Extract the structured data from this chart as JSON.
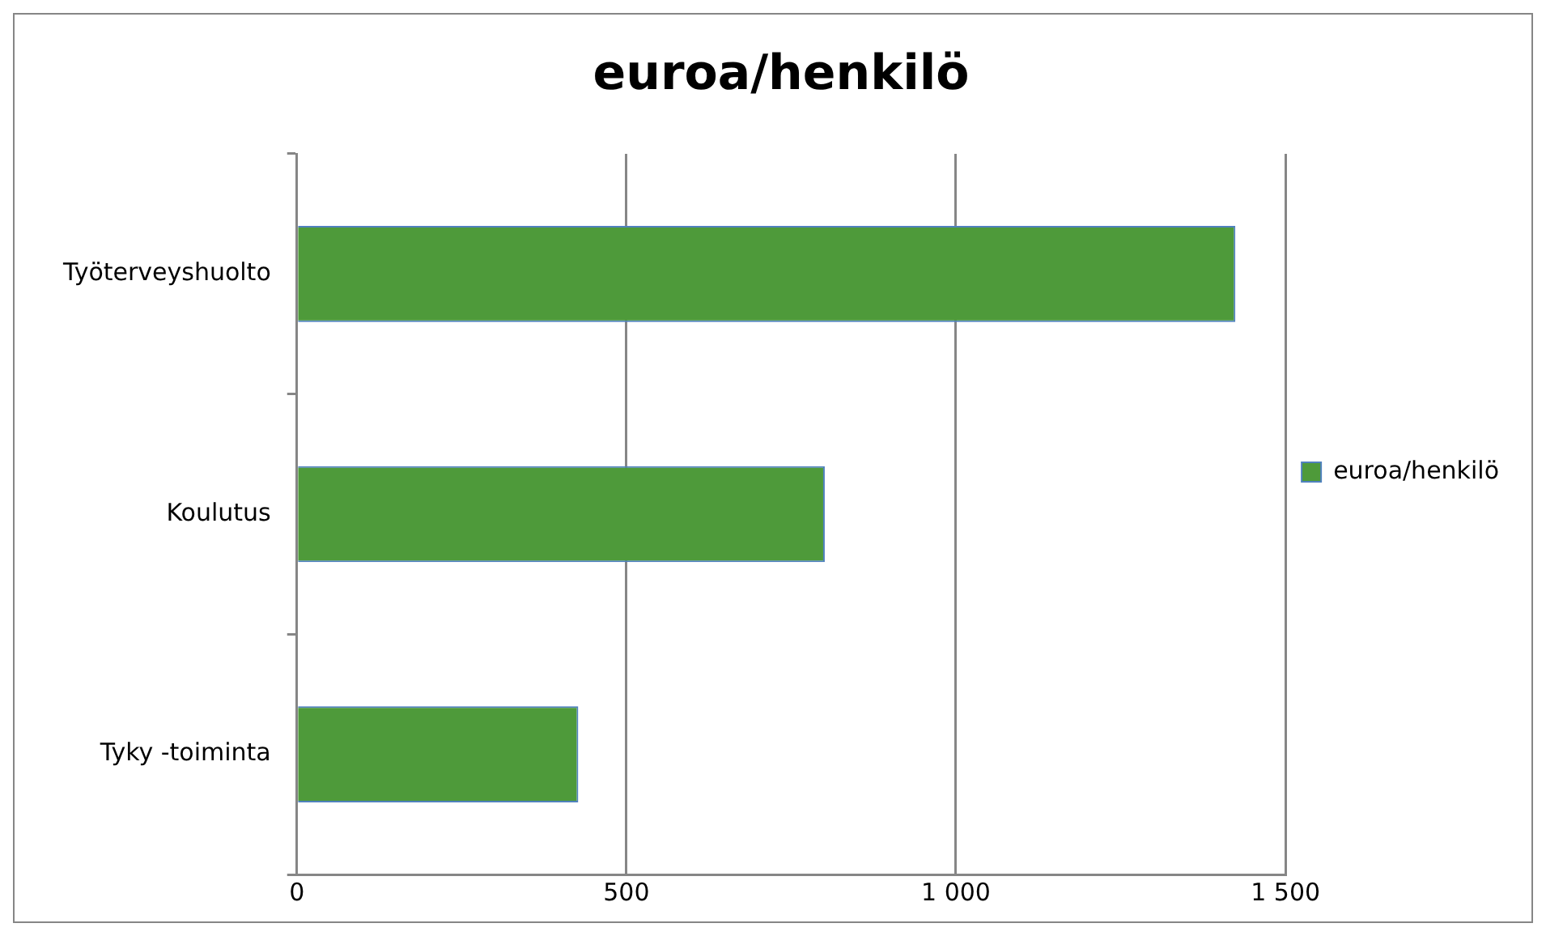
{
  "chart_data": {
    "type": "bar",
    "orientation": "horizontal",
    "title": "euroa/henkilö",
    "categories": [
      "Työterveyshuolto",
      "Koulutus",
      "Tyky -toiminta"
    ],
    "series": [
      {
        "name": "euroa/henkilö",
        "color": "#4e9a3a",
        "values": [
          1424,
          801,
          427
        ]
      }
    ],
    "xlim": [
      0,
      1500
    ],
    "xticks": [
      0,
      500,
      {
        "value": 1000,
        "label": "1 000"
      },
      {
        "value": 1500,
        "label": "1 500"
      }
    ],
    "grid": "x",
    "legend": "right"
  }
}
